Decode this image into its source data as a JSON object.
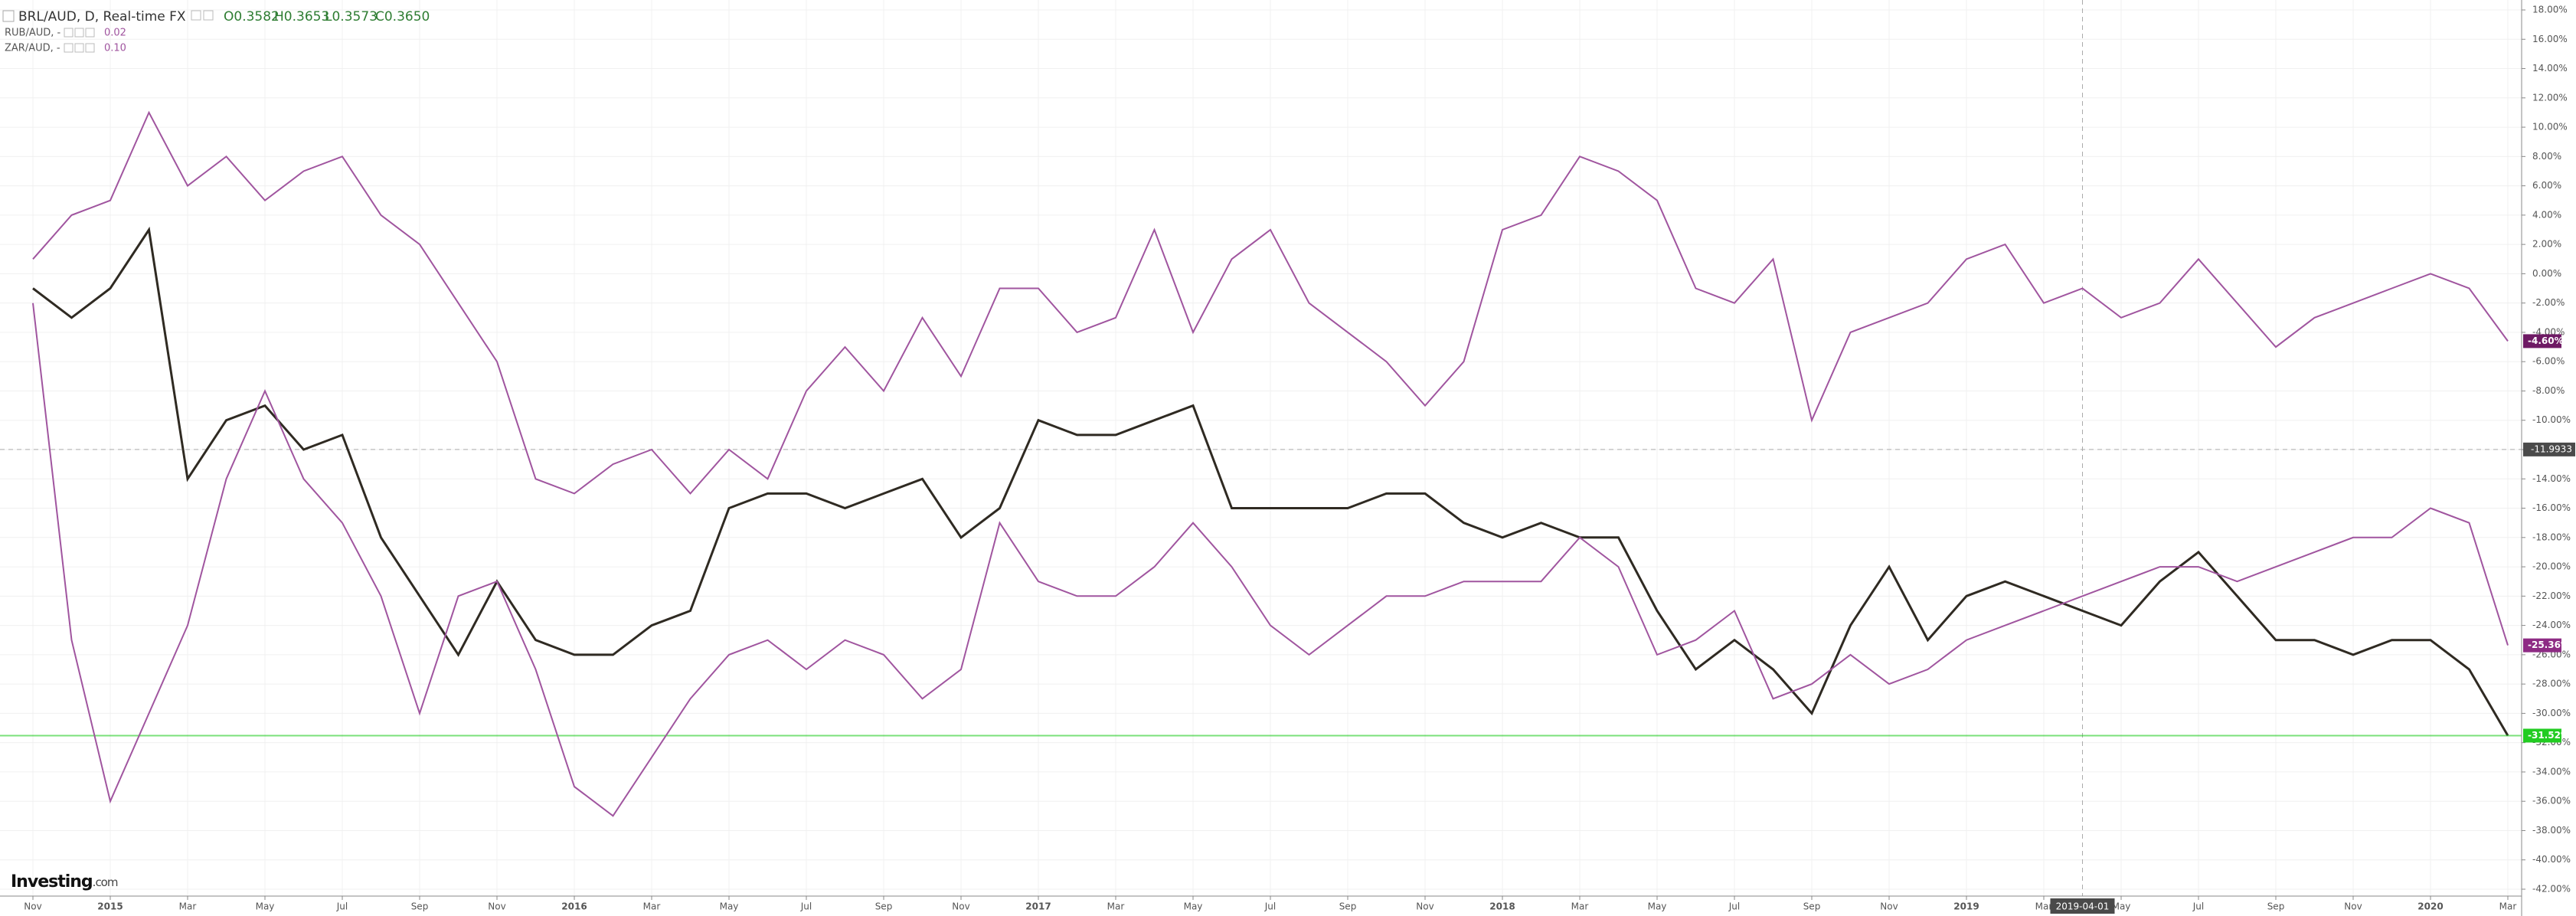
{
  "chart_data": {
    "type": "line",
    "title": "BRL/AUD, D, Real-time FX",
    "ohlc": [
      "O0.3582",
      "H0.3653",
      "L0.3573",
      "C0.3650"
    ],
    "logo": "Investing",
    "logo_suffix": ".com",
    "categories": [
      "Nov",
      null,
      "2015",
      null,
      "Mar",
      null,
      "May",
      null,
      "Jul",
      null,
      "Sep",
      null,
      "Nov",
      null,
      "2016",
      null,
      "Mar",
      null,
      "May",
      null,
      "Jul",
      null,
      "Sep",
      null,
      "Nov",
      null,
      "2017",
      null,
      "Mar",
      null,
      "May",
      null,
      "Jul",
      null,
      "Sep",
      null,
      "Nov",
      null,
      "2018",
      null,
      "Mar",
      null,
      "May",
      null,
      "Jul",
      null,
      "Sep",
      null,
      "Nov",
      null,
      "2019",
      null,
      "Mar",
      null,
      "May",
      null,
      "Jul",
      null,
      "Sep",
      null,
      "Nov",
      null,
      "2020",
      null,
      "Mar"
    ],
    "series": [
      {
        "name": "BRL/AUD",
        "color": "#2f2a22",
        "label_color": "#22cc22",
        "last_value_label": "-31.52%",
        "values": [
          -1,
          -3,
          -1,
          3,
          -14,
          -10,
          -9,
          -12,
          -11,
          -18,
          -22,
          -26,
          -21,
          -25,
          -26,
          -26,
          -24,
          -23,
          -16,
          -15,
          -15,
          -16,
          -15,
          -14,
          -18,
          -16,
          -10,
          -11,
          -11,
          -10,
          -9,
          -16,
          -16,
          -16,
          -16,
          -15,
          -15,
          -17,
          -18,
          -17,
          -18,
          -18,
          -23,
          -27,
          -25,
          -27,
          -30,
          -24,
          -20,
          -25,
          -22,
          -21,
          -22,
          -23,
          -24,
          -21,
          -19,
          -22,
          -25,
          -25,
          -26,
          -25,
          -25,
          -27,
          -31.52
        ]
      },
      {
        "name": "RUB/AUD, -",
        "legend_value": "0.02",
        "color": "#a0559f",
        "label_color": "#8e2b84",
        "last_value_label": "-25.36%",
        "values": [
          -2,
          -25,
          -36,
          -30,
          -24,
          -14,
          -8,
          -14,
          -17,
          -22,
          -30,
          -22,
          -21,
          -27,
          -35,
          -37,
          -33,
          -29,
          -26,
          -25,
          -27,
          -25,
          -26,
          -29,
          -27,
          -17,
          -21,
          -22,
          -22,
          -20,
          -17,
          -20,
          -24,
          -26,
          -24,
          -22,
          -22,
          -21,
          -21,
          -21,
          -18,
          -20,
          -26,
          -25,
          -23,
          -29,
          -28,
          -26,
          -28,
          -27,
          -25,
          -24,
          -23,
          -22,
          -21,
          -20,
          -20,
          -21,
          -20,
          -19,
          -18,
          -18,
          -16,
          -17,
          -25.36
        ]
      },
      {
        "name": "ZAR/AUD, -",
        "legend_value": "0.10",
        "color": "#a0559f",
        "label_color": "#6e1a64",
        "last_value_label": "-4.60%",
        "values": [
          1,
          4,
          5,
          11,
          6,
          8,
          5,
          7,
          8,
          4,
          2,
          -2,
          -6,
          -14,
          -15,
          -13,
          -12,
          -15,
          -12,
          -14,
          -8,
          -5,
          -8,
          -3,
          -7,
          -1,
          -1,
          -4,
          -3,
          3,
          -4,
          1,
          3,
          -2,
          -4,
          -6,
          -9,
          -6,
          3,
          4,
          8,
          7,
          5,
          -1,
          -2,
          1,
          -10,
          -4,
          -3,
          -2,
          1,
          2,
          -2,
          -1,
          -3,
          -2,
          1,
          -2,
          -5,
          -3,
          -2,
          -1,
          0,
          -1,
          -4.6
        ]
      }
    ],
    "crosshair": {
      "x": "2019-04-01",
      "y": -11.9933
    },
    "ylim": [
      18,
      -42
    ],
    "yticks": [
      {
        "value": 18,
        "label": "18.00%"
      },
      {
        "value": 16,
        "label": "16.00%"
      },
      {
        "value": 14,
        "label": "14.00%"
      },
      {
        "value": 12,
        "label": "12.00%"
      },
      {
        "value": 10,
        "label": "10.00%"
      },
      {
        "value": 8,
        "label": "8.00%"
      },
      {
        "value": 6,
        "label": "6.00%"
      },
      {
        "value": 4,
        "label": "4.00%"
      },
      {
        "value": 2,
        "label": "2.00%"
      },
      {
        "value": 0,
        "label": "0.00%"
      },
      {
        "value": -2,
        "label": "-2.00%"
      },
      {
        "value": -4,
        "label": "-4.00%"
      },
      {
        "value": -6,
        "label": "-6.00%"
      },
      {
        "value": -8,
        "label": "-8.00%"
      },
      {
        "value": -10,
        "label": "-10.00%"
      },
      {
        "value": -12,
        "label": "-12.00%"
      },
      {
        "value": -14,
        "label": "-14.00%"
      },
      {
        "value": -16,
        "label": "-16.00%"
      },
      {
        "value": -18,
        "label": "-18.00%"
      },
      {
        "value": -20,
        "label": "-20.00%"
      },
      {
        "value": -22,
        "label": "-22.00%"
      },
      {
        "value": -24,
        "label": "-24.00%"
      },
      {
        "value": -26,
        "label": "-26.00%"
      },
      {
        "value": -28,
        "label": "-28.00%"
      },
      {
        "value": -30,
        "label": "-30.00%"
      },
      {
        "value": -32,
        "label": "-32.00%"
      },
      {
        "value": -34,
        "label": "-34.00%"
      },
      {
        "value": -36,
        "label": "-36.00%"
      },
      {
        "value": -38,
        "label": "-38.00%"
      },
      {
        "value": -40,
        "label": "-40.00%"
      },
      {
        "value": -42,
        "label": "-42.00%"
      }
    ],
    "grid": true
  }
}
